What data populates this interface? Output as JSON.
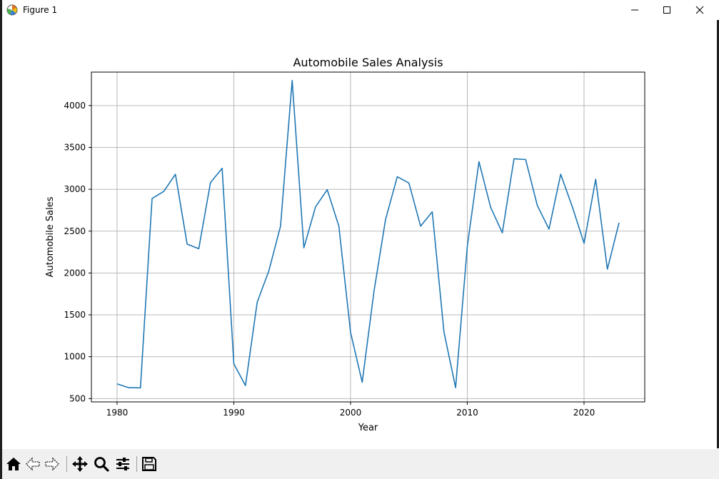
{
  "window": {
    "title": "Figure 1",
    "icons": {
      "app": "matplotlib-icon",
      "minimize": "minimize-icon",
      "maximize": "maximize-icon",
      "close": "close-icon"
    }
  },
  "toolbar": {
    "buttons": [
      {
        "name": "home-button",
        "icon": "home-icon"
      },
      {
        "name": "back-button",
        "icon": "arrow-left-icon"
      },
      {
        "name": "forward-button",
        "icon": "arrow-right-icon"
      },
      {
        "name": "pan-button",
        "icon": "move-icon"
      },
      {
        "name": "zoom-button",
        "icon": "magnifier-icon"
      },
      {
        "name": "configure-subplots-button",
        "icon": "sliders-icon"
      },
      {
        "name": "save-button",
        "icon": "floppy-disk-icon"
      }
    ]
  },
  "chart_data": {
    "type": "line",
    "title": "Automobile Sales Analysis",
    "xlabel": "Year",
    "ylabel": "Automobile Sales",
    "xlim": [
      1977.8,
      2025.2
    ],
    "ylim": [
      460,
      4400
    ],
    "xticks": [
      1980,
      1990,
      2000,
      2010,
      2020
    ],
    "yticks": [
      500,
      1000,
      1500,
      2000,
      2500,
      3000,
      3500,
      4000
    ],
    "grid": true,
    "line_color": "#1f77b4",
    "series": [
      {
        "x": [
          1980,
          1981,
          1982,
          1983,
          1984,
          1985,
          1986,
          1987,
          1988,
          1989,
          1990,
          1991,
          1992,
          1993,
          1994,
          1995,
          1996,
          1997,
          1998,
          1999,
          2000,
          2001,
          2002,
          2003,
          2004,
          2005,
          2006,
          2007,
          2008,
          2009,
          2010,
          2011,
          2012,
          2013,
          2014,
          2015,
          2016,
          2017,
          2018,
          2019,
          2020,
          2021,
          2022,
          2023
        ],
        "values": [
          675,
          630,
          628,
          2890,
          2975,
          3180,
          2345,
          2290,
          3080,
          3250,
          915,
          655,
          1650,
          2025,
          2560,
          4300,
          2300,
          2790,
          2995,
          2560,
          1290,
          695,
          1775,
          2640,
          3150,
          3075,
          2560,
          2730,
          1295,
          630,
          2320,
          3330,
          2785,
          2480,
          3365,
          3355,
          2805,
          2525,
          3180,
          2790,
          2355,
          3120,
          2045,
          2600
        ]
      }
    ]
  }
}
